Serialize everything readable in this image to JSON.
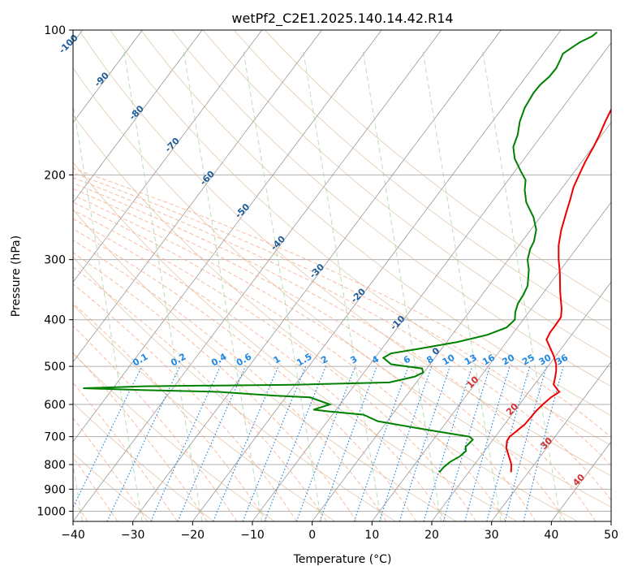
{
  "chart_data": {
    "type": "line",
    "title": "wetPf2_C2E1.2025.140.14.42.R14",
    "xlabel": "Temperature (°C)",
    "ylabel": "Pressure (hPa)",
    "xlim": [
      -40,
      50
    ],
    "ylim": [
      1050,
      100
    ],
    "y_scale": "log",
    "skew": "skew-T",
    "x_ticks": [
      "−40",
      "−30",
      "−20",
      "−10",
      "0",
      "10",
      "20",
      "30",
      "40",
      "50"
    ],
    "y_ticks": [
      "100",
      "200",
      "300",
      "400",
      "500",
      "600",
      "700",
      "800",
      "900",
      "1000"
    ],
    "grid": true,
    "series": [
      {
        "color": "#ee0000",
        "points": [
          [
            27.1,
            830
          ],
          [
            26.2,
            800
          ],
          [
            24.3,
            760
          ],
          [
            23.3,
            740
          ],
          [
            22.5,
            715
          ],
          [
            22.4,
            700
          ],
          [
            22.9,
            680
          ],
          [
            23.4,
            660
          ],
          [
            23.5,
            640
          ],
          [
            23.6,
            620
          ],
          [
            23.9,
            600
          ],
          [
            24.4,
            580
          ],
          [
            25.1,
            565
          ],
          [
            24.6,
            560
          ],
          [
            23.2,
            545
          ],
          [
            22.7,
            530
          ],
          [
            21.9,
            510
          ],
          [
            21.1,
            495
          ],
          [
            19.6,
            475
          ],
          [
            17.8,
            455
          ],
          [
            16.4,
            440
          ],
          [
            16.1,
            425
          ],
          [
            16.1,
            410
          ],
          [
            16.0,
            395
          ],
          [
            15.1,
            380
          ],
          [
            12.7,
            350
          ],
          [
            10.3,
            320
          ],
          [
            8.4,
            300
          ],
          [
            6.6,
            280
          ],
          [
            5.1,
            260
          ],
          [
            3.8,
            240
          ],
          [
            2.8,
            225
          ],
          [
            1.8,
            212
          ],
          [
            1.2,
            200
          ],
          [
            0.6,
            188
          ],
          [
            0.1,
            175
          ],
          [
            -0.4,
            165
          ],
          [
            -1.1,
            155
          ],
          [
            -1.7,
            145
          ],
          [
            -2.2,
            135
          ],
          [
            -2.3,
            128
          ],
          [
            -2.1,
            122
          ],
          [
            -1.8,
            117
          ],
          [
            -1.0,
            112
          ],
          [
            0.1,
            106
          ],
          [
            1.0,
            101
          ]
        ]
      },
      {
        "color": "#008000",
        "points": [
          [
            15.1,
            830
          ],
          [
            15.2,
            810
          ],
          [
            15.6,
            790
          ],
          [
            16.5,
            770
          ],
          [
            16.9,
            750
          ],
          [
            16.3,
            735
          ],
          [
            16.5,
            720
          ],
          [
            16.6,
            710
          ],
          [
            15.7,
            700
          ],
          [
            12.2,
            690
          ],
          [
            5.2,
            670
          ],
          [
            -1.6,
            650
          ],
          [
            -4.8,
            630
          ],
          [
            -11.3,
            620
          ],
          [
            -13.8,
            615
          ],
          [
            -11.7,
            600
          ],
          [
            -15.9,
            580
          ],
          [
            -22.2,
            575
          ],
          [
            -31.9,
            565
          ],
          [
            -45.0,
            560
          ],
          [
            -55.0,
            555
          ],
          [
            -45.0,
            550
          ],
          [
            -20.0,
            546
          ],
          [
            -4.5,
            540
          ],
          [
            -1.0,
            525
          ],
          [
            -0.1,
            515
          ],
          [
            -0.8,
            505
          ],
          [
            -6.5,
            495
          ],
          [
            -8.6,
            480
          ],
          [
            -7.9,
            470
          ],
          [
            -3.9,
            460
          ],
          [
            1.8,
            445
          ],
          [
            5.9,
            430
          ],
          [
            8.2,
            415
          ],
          [
            8.6,
            400
          ],
          [
            7.7,
            385
          ],
          [
            7.1,
            370
          ],
          [
            6.9,
            355
          ],
          [
            6.5,
            340
          ],
          [
            4.7,
            315
          ],
          [
            3.2,
            300
          ],
          [
            2.3,
            285
          ],
          [
            2.0,
            275
          ],
          [
            0.9,
            260
          ],
          [
            -1.1,
            245
          ],
          [
            -4.2,
            228
          ],
          [
            -6.0,
            215
          ],
          [
            -7.1,
            205
          ],
          [
            -8.9,
            197
          ],
          [
            -11.6,
            185
          ],
          [
            -13.3,
            175
          ],
          [
            -14.1,
            165
          ],
          [
            -15.4,
            155
          ],
          [
            -16.3,
            145
          ],
          [
            -16.7,
            135
          ],
          [
            -16.6,
            130
          ],
          [
            -16.1,
            125
          ],
          [
            -16.0,
            120
          ],
          [
            -16.4,
            115
          ],
          [
            -16.7,
            112
          ],
          [
            -15.8,
            108
          ],
          [
            -15.3,
            106
          ],
          [
            -14.0,
            103
          ],
          [
            -13.7,
            101
          ]
        ]
      }
    ],
    "dry_adiabat_labels": [
      "-100",
      "-90",
      "-80",
      "-70",
      "-60",
      "-50",
      "-40",
      "-30",
      "-20",
      "-10",
      "0",
      "10",
      "20",
      "30",
      "40"
    ],
    "mixing_ratio_labels": [
      "0.1",
      "0.2",
      "0.4",
      "0.6",
      "1",
      "1.5",
      "2",
      "3",
      "4",
      "6",
      "8",
      "10",
      "13",
      "16",
      "20",
      "25",
      "30",
      "36"
    ],
    "colors": {
      "dry_adiabat": "#1f5c99",
      "mixing_ratio": "#1e88e5",
      "warm_adiabat_label": "#d32f2f",
      "isotherm": "#808080",
      "moist_adiabat": "#f4a582",
      "wet_line": "#9ccf9c"
    }
  }
}
